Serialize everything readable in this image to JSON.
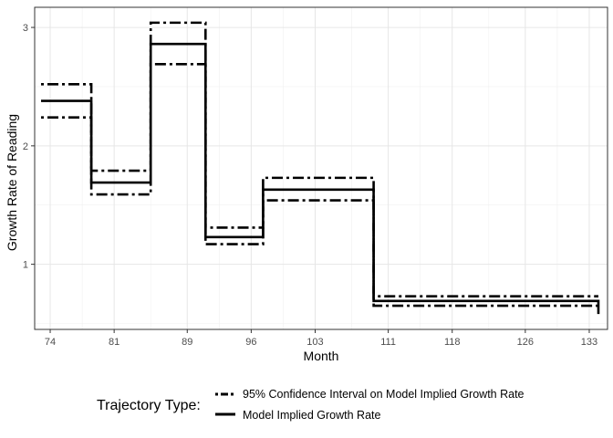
{
  "chart_data": {
    "type": "line",
    "step": true,
    "xlabel": "Month",
    "ylabel": "Growth Rate of Reading",
    "x_ticks": [
      74,
      81,
      89,
      96,
      103,
      111,
      118,
      126,
      133
    ],
    "y_ticks": [
      1,
      2,
      3
    ],
    "xlim": [
      72.3,
      135
    ],
    "ylim": [
      0.45,
      3.17
    ],
    "grid": true,
    "legend_position": "bottom",
    "legend": {
      "title": "Trajectory Type:",
      "entries": [
        "95% Confidence Interval on Model Implied Growth Rate",
        "Model Implied Growth Rate"
      ]
    },
    "series": [
      {
        "name": "Model Implied Growth Rate",
        "style": "solid",
        "color": "#000000",
        "segments": [
          {
            "x": [
              73,
              78.5
            ],
            "y": 2.38
          },
          {
            "x": [
              78.5,
              85
            ],
            "y": 1.69
          },
          {
            "x": [
              85,
              91
            ],
            "y": 2.86
          },
          {
            "x": [
              91,
              97.3
            ],
            "y": 1.23
          },
          {
            "x": [
              97.3,
              109.4
            ],
            "y": 1.63
          },
          {
            "x": [
              109.4,
              134
            ],
            "y": 0.69
          }
        ],
        "end_drop": 0.58
      },
      {
        "name": "95% Confidence Interval on Model Implied Growth Rate",
        "bound": "upper",
        "style": "dotdash",
        "color": "#000000",
        "segments": [
          {
            "x": [
              73,
              78.5
            ],
            "y": 2.52
          },
          {
            "x": [
              78.5,
              85
            ],
            "y": 1.79
          },
          {
            "x": [
              85,
              91
            ],
            "y": 3.04
          },
          {
            "x": [
              91,
              97.3
            ],
            "y": 1.31
          },
          {
            "x": [
              97.3,
              109.4
            ],
            "y": 1.73
          },
          {
            "x": [
              109.4,
              134
            ],
            "y": 0.73
          }
        ]
      },
      {
        "name": "95% Confidence Interval on Model Implied Growth Rate",
        "bound": "lower",
        "style": "dotdash",
        "color": "#000000",
        "segments": [
          {
            "x": [
              73,
              78.5
            ],
            "y": 2.24
          },
          {
            "x": [
              78.5,
              85
            ],
            "y": 1.59
          },
          {
            "x": [
              85,
              91
            ],
            "y": 2.69
          },
          {
            "x": [
              91,
              97.3
            ],
            "y": 1.17
          },
          {
            "x": [
              97.3,
              109.4
            ],
            "y": 1.54
          },
          {
            "x": [
              109.4,
              134
            ],
            "y": 0.65
          }
        ]
      }
    ]
  }
}
